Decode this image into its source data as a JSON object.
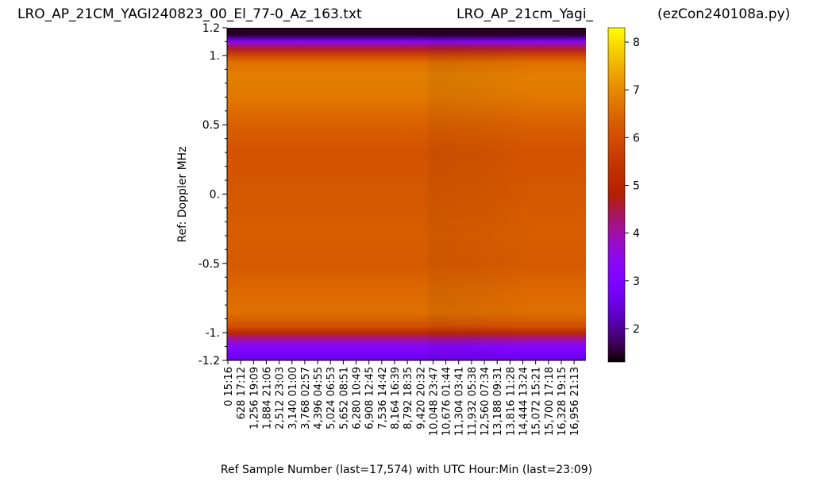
{
  "header": {
    "left_title": "LRO_AP_21CM_YAGI240823_00_El_77-0_Az_163.txt",
    "center_title": "LRO_AP_21cm_Yagi_",
    "right_title": "(ezCon240108a.py)"
  },
  "chart_data": {
    "type": "heatmap",
    "xlabel": "Ref Sample Number (last=17,574) with UTC Hour:Min (last=23:09)",
    "ylabel": "Ref:  Doppler MHz",
    "ylim": [
      -1.2,
      1.2
    ],
    "yticks": [
      {
        "value": 1.2,
        "label": "1.2"
      },
      {
        "value": 1.0,
        "label": "1."
      },
      {
        "value": 0.5,
        "label": "0.5"
      },
      {
        "value": 0.0,
        "label": "0."
      },
      {
        "value": -0.5,
        "label": "-0.5"
      },
      {
        "value": -1.0,
        "label": "-1."
      },
      {
        "value": -1.2,
        "label": "-1.2"
      }
    ],
    "x_last": 17574,
    "x_ticks": [
      {
        "sample": "0",
        "time": "15:16"
      },
      {
        "sample": "628",
        "time": "17:12"
      },
      {
        "sample": "1,256",
        "time": "19:09"
      },
      {
        "sample": "1,884",
        "time": "21:06"
      },
      {
        "sample": "2,512",
        "time": "23:03"
      },
      {
        "sample": "3,140",
        "time": "01:00"
      },
      {
        "sample": "3,768",
        "time": "02:57"
      },
      {
        "sample": "4,396",
        "time": "04:55"
      },
      {
        "sample": "5,024",
        "time": "06:53"
      },
      {
        "sample": "5,652",
        "time": "08:51"
      },
      {
        "sample": "6,280",
        "time": "10:49"
      },
      {
        "sample": "6,908",
        "time": "12:45"
      },
      {
        "sample": "7,536",
        "time": "14:42"
      },
      {
        "sample": "8,164",
        "time": "16:39"
      },
      {
        "sample": "8,792",
        "time": "18:35"
      },
      {
        "sample": "9,420",
        "time": "20:32"
      },
      {
        "sample": "10,048",
        "time": "23:47"
      },
      {
        "sample": "10,676",
        "time": "01:44"
      },
      {
        "sample": "11,304",
        "time": "03:41"
      },
      {
        "sample": "11,932",
        "time": "05:38"
      },
      {
        "sample": "12,560",
        "time": "07:34"
      },
      {
        "sample": "13,188",
        "time": "09:31"
      },
      {
        "sample": "13,816",
        "time": "11:28"
      },
      {
        "sample": "14,444",
        "time": "13:24"
      },
      {
        "sample": "15,072",
        "time": "15:21"
      },
      {
        "sample": "15,700",
        "time": "17:18"
      },
      {
        "sample": "16,328",
        "time": "19:15"
      },
      {
        "sample": "16,956",
        "time": "21:13"
      }
    ],
    "colormap": "gnuplot",
    "colorbar": {
      "min": 1.3,
      "max": 8.3,
      "ticks": [
        2,
        3,
        4,
        5,
        6,
        7,
        8
      ]
    },
    "doppler_profile": [
      {
        "mhz": 1.2,
        "value": 1.4
      },
      {
        "mhz": 1.15,
        "value": 1.5
      },
      {
        "mhz": 1.12,
        "value": 2.2
      },
      {
        "mhz": 1.1,
        "value": 3.4
      },
      {
        "mhz": 1.05,
        "value": 4.6
      },
      {
        "mhz": 1.0,
        "value": 5.9
      },
      {
        "mhz": 0.95,
        "value": 6.6
      },
      {
        "mhz": 0.85,
        "value": 6.85
      },
      {
        "mhz": 0.7,
        "value": 6.75
      },
      {
        "mhz": 0.5,
        "value": 6.35
      },
      {
        "mhz": 0.3,
        "value": 6.1
      },
      {
        "mhz": 0.0,
        "value": 6.2
      },
      {
        "mhz": -0.3,
        "value": 6.3
      },
      {
        "mhz": -0.5,
        "value": 6.25
      },
      {
        "mhz": -0.7,
        "value": 6.5
      },
      {
        "mhz": -0.85,
        "value": 6.6
      },
      {
        "mhz": -0.95,
        "value": 6.1
      },
      {
        "mhz": -1.0,
        "value": 5.1
      },
      {
        "mhz": -1.05,
        "value": 4.0
      },
      {
        "mhz": -1.1,
        "value": 3.2
      },
      {
        "mhz": -1.15,
        "value": 2.8
      },
      {
        "mhz": -1.2,
        "value": 2.6
      }
    ]
  }
}
